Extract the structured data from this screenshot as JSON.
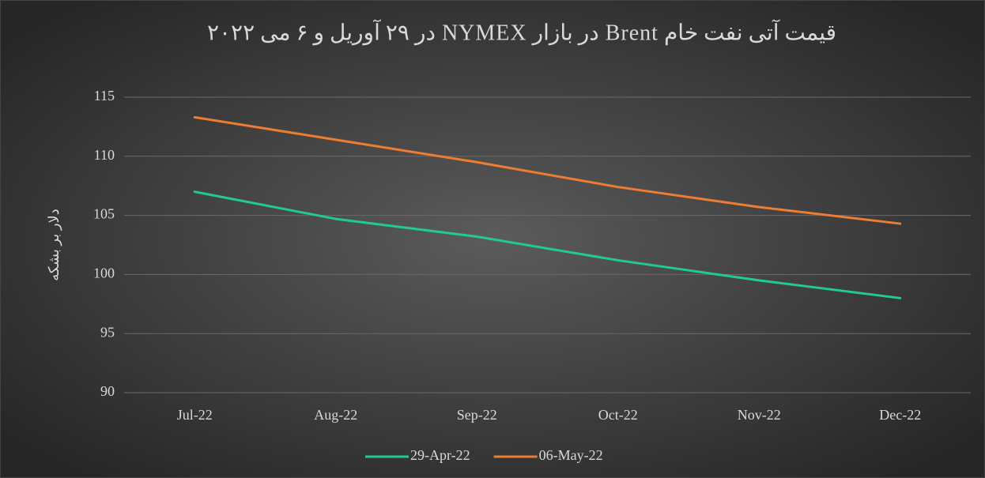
{
  "chart_data": {
    "type": "line",
    "title": "قیمت آتی نفت خام Brent در بازار NYMEX در ۲۹ آوریل و ۶ می ۲۰۲۲",
    "y_label": "دلار بر بشکه",
    "categories": [
      "Jul-22",
      "Aug-22",
      "Sep-22",
      "Oct-22",
      "Nov-22",
      "Dec-22"
    ],
    "series": [
      {
        "name": "29-Apr-22",
        "color": "#22c997",
        "values": [
          107.0,
          104.7,
          103.2,
          101.2,
          99.5,
          98.0
        ]
      },
      {
        "name": "06-May-22",
        "color": "#ed7d31",
        "values": [
          113.3,
          111.4,
          109.5,
          107.4,
          105.7,
          104.3
        ]
      }
    ],
    "ylim": [
      90,
      115
    ],
    "yticks": [
      90,
      95,
      100,
      105,
      110,
      115
    ],
    "grid": true,
    "legend": "bottom"
  }
}
